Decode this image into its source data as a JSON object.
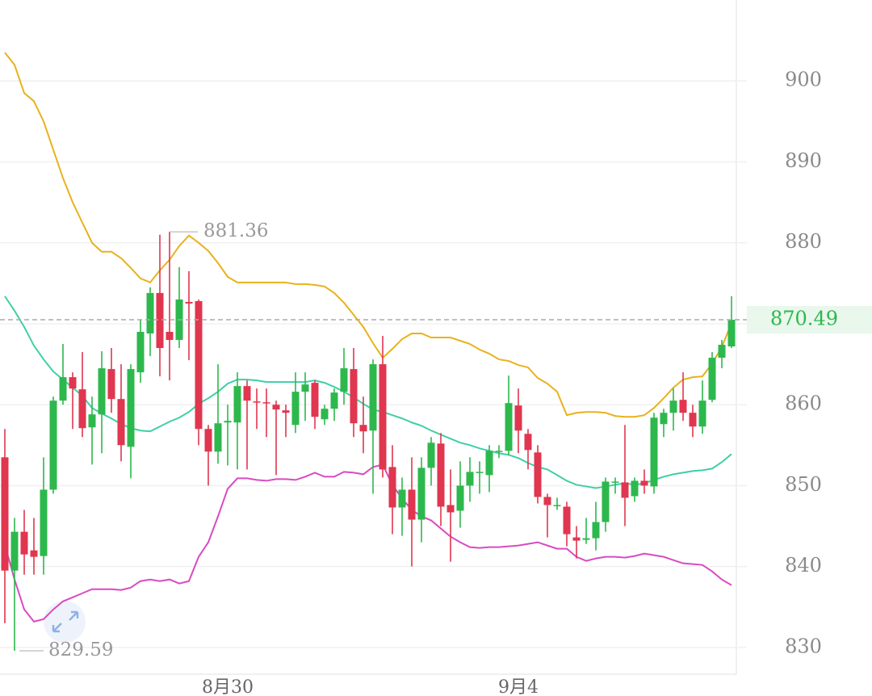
{
  "chart_data": {
    "type": "candlestick",
    "categories": [
      null,
      null,
      null,
      null,
      null,
      null,
      null,
      null,
      null,
      null,
      null,
      null,
      null,
      null,
      null,
      null,
      null,
      null,
      null,
      null,
      null,
      null,
      null,
      "8月30",
      null,
      null,
      null,
      null,
      null,
      null,
      null,
      null,
      null,
      null,
      null,
      null,
      null,
      null,
      null,
      null,
      null,
      null,
      null,
      null,
      null,
      null,
      null,
      null,
      null,
      null,
      null,
      null,
      null,
      "9月4",
      null,
      null,
      null,
      null,
      null,
      null,
      null,
      null,
      null,
      null,
      null,
      null,
      null,
      null,
      null,
      null,
      null,
      null,
      null,
      null,
      null,
      null
    ],
    "open": [
      853.5,
      839.5,
      844.3,
      842,
      841.3,
      849.5,
      860.5,
      863.4,
      861.9,
      857.2,
      858.8,
      864.4,
      860.7,
      854.8,
      864,
      868.8,
      873.8,
      869,
      868,
      872.7,
      872.8,
      857,
      854.2,
      857.8,
      857.8,
      862.3,
      860.4,
      860.3,
      860,
      859.3,
      857.5,
      861.6,
      862.7,
      858.2,
      859.5,
      861.6,
      864.4,
      857.5,
      856.8,
      865,
      852.3,
      847.3,
      849.5,
      845.8,
      852.2,
      855.2,
      847.6,
      846.9,
      850,
      851.6,
      851.3,
      854.2,
      854.3,
      859.9,
      856.4,
      854.1,
      848.6,
      847.5,
      847.4,
      843.6,
      843.3,
      843.5,
      845.5,
      850.4,
      850.4,
      848.7,
      850.6,
      849.9,
      857.6,
      859,
      860.6,
      859,
      857.3,
      860.6,
      865.8,
      867.2
    ],
    "high": [
      857,
      846,
      847,
      846,
      853.5,
      861,
      867.5,
      864,
      866.5,
      861,
      866.6,
      867,
      865,
      865,
      870.5,
      874.5,
      881,
      881.36,
      877,
      876.5,
      873,
      857.5,
      865,
      860,
      864,
      863,
      862,
      862,
      860.5,
      860,
      864,
      864,
      863,
      860,
      862,
      867,
      867,
      861,
      865.6,
      868.5,
      855,
      851,
      853.5,
      853.5,
      856,
      856.5,
      852,
      853,
      853.5,
      853,
      855,
      855,
      863.6,
      862,
      857,
      855,
      849,
      848.5,
      848,
      845,
      846,
      848,
      851,
      851,
      857.5,
      851,
      852,
      859,
      859.5,
      862,
      864,
      860,
      863,
      866.5,
      868,
      873.4
    ],
    "low": [
      833,
      829.59,
      839,
      839,
      839,
      849,
      860,
      857,
      856,
      852.6,
      854,
      859,
      853,
      850.9,
      862.7,
      866,
      863.5,
      863,
      867,
      865.5,
      855,
      850,
      852.7,
      852.5,
      852,
      852,
      857,
      856,
      851.3,
      856,
      856.5,
      858,
      857,
      857.5,
      858,
      860,
      856,
      854,
      849,
      851,
      844,
      843.8,
      840,
      843,
      850,
      845,
      840.6,
      844.8,
      848,
      849,
      849.2,
      853.4,
      853.8,
      854,
      852,
      847.8,
      843.6,
      847,
      842.5,
      841,
      842.8,
      842,
      844.3,
      849,
      845,
      848,
      849,
      849,
      856,
      856.8,
      858,
      856,
      856.4,
      860.3,
      864.5,
      867
    ],
    "close": [
      839.5,
      844.3,
      841.5,
      841.2,
      849.5,
      860.5,
      863.4,
      862,
      857.1,
      858.8,
      864.5,
      860.7,
      855,
      864.4,
      869,
      873.8,
      867,
      868,
      873,
      872.5,
      857,
      854.2,
      857.7,
      858,
      862.3,
      860.5,
      860.3,
      860.2,
      859.4,
      859,
      861.6,
      862.5,
      858.5,
      859.5,
      861.5,
      864.5,
      857.7,
      856.7,
      865,
      852,
      847.3,
      849.5,
      845.8,
      852.2,
      855.3,
      847.4,
      846.7,
      850,
      851.7,
      851.7,
      854.3,
      854.3,
      860.2,
      856.8,
      854.4,
      848.6,
      847.6,
      847.6,
      844,
      843.2,
      843.5,
      845.5,
      850.5,
      850.5,
      848.5,
      850.6,
      850,
      858.4,
      859,
      860.5,
      859,
      857.3,
      860.5,
      865.8,
      867.4,
      870.49
    ],
    "up_color": "#2db84d",
    "down_color": "#e0364f",
    "upper": [
      903.5,
      902,
      898.5,
      897.5,
      895,
      891.5,
      888,
      885,
      882.5,
      880,
      878.9,
      878.9,
      878.1,
      876.9,
      875.6,
      875.1,
      876.6,
      877.9,
      879.6,
      880.9,
      880,
      879,
      877.5,
      875.8,
      875.1,
      875.1,
      875.1,
      875.1,
      875.1,
      875.1,
      874.9,
      874.9,
      874.8,
      874.6,
      873.8,
      872.6,
      871.1,
      869.6,
      867.6,
      865.8,
      866.9,
      868.1,
      868.8,
      868.8,
      868.3,
      868.3,
      868.3,
      867.9,
      867.5,
      866.8,
      866.3,
      865.6,
      865.4,
      864.9,
      864.6,
      863.3,
      862.6,
      861.6,
      858.7,
      859,
      859.1,
      859.1,
      859,
      858.6,
      858.5,
      858.5,
      858.7,
      859.6,
      860.8,
      862.1,
      863.1,
      863.4,
      863.5,
      865.1,
      867.1,
      870.1
    ],
    "middle": [
      873.4,
      871.6,
      869.6,
      867.3,
      865.6,
      864.1,
      863.1,
      862.1,
      861.1,
      859.6,
      858.9,
      858.3,
      857.6,
      857.1,
      856.8,
      856.7,
      857.3,
      857.9,
      858.4,
      859.1,
      860.1,
      860.8,
      861.6,
      862.6,
      863.1,
      863.1,
      863,
      862.8,
      862.8,
      862.8,
      862.8,
      862.8,
      863,
      862.7,
      862.2,
      861.6,
      860.9,
      860.1,
      859.4,
      859.1,
      858.7,
      858.3,
      857.8,
      857.4,
      856.8,
      856.3,
      855.8,
      855.3,
      855,
      854.6,
      854.3,
      854,
      853.8,
      853.4,
      852.8,
      852.3,
      852,
      851.3,
      850.6,
      850.1,
      849.9,
      849.7,
      849.9,
      850.1,
      850.3,
      850.1,
      850.3,
      850.7,
      851.1,
      851.4,
      851.6,
      851.8,
      851.9,
      852.1,
      852.9,
      853.9
    ],
    "lower": [
      842.7,
      838.4,
      834.7,
      833.2,
      833.5,
      834.7,
      835.7,
      836.2,
      836.7,
      837.2,
      837.2,
      837.2,
      837.1,
      837.4,
      838.2,
      838.4,
      838.2,
      838.4,
      837.9,
      838.2,
      841.2,
      843,
      846.2,
      849.6,
      850.9,
      850.9,
      850.7,
      850.6,
      850.8,
      850.8,
      850.7,
      851.1,
      851.6,
      851.1,
      851.1,
      851.7,
      851.6,
      851.4,
      852.3,
      852.6,
      850.1,
      848.4,
      847,
      846.2,
      845.7,
      844.7,
      843.7,
      843,
      842.4,
      842.3,
      842.4,
      842.4,
      842.5,
      842.6,
      842.8,
      843,
      842.6,
      842.2,
      842.2,
      841.2,
      840.7,
      841,
      841.2,
      841.2,
      841.1,
      841.3,
      841.6,
      841.4,
      841.2,
      840.8,
      840.4,
      840.3,
      840.2,
      839.4,
      838.4,
      837.7
    ],
    "upper_color": "#e8b21c",
    "middle_color": "#3ecfa6",
    "lower_color": "#d94ac2",
    "ylim": [
      826.7,
      910
    ],
    "yticks": [
      830,
      840,
      850,
      860,
      870,
      880,
      890,
      900
    ],
    "grid": true
  }
}
